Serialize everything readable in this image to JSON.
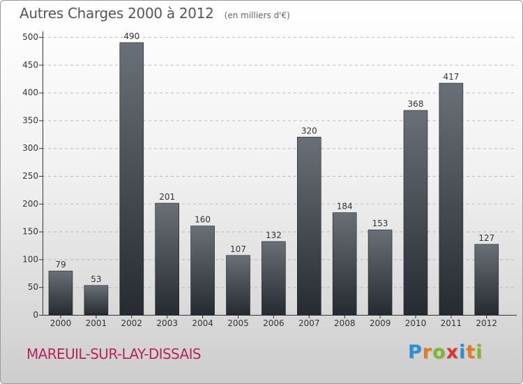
{
  "header": {
    "title": "Autres Charges 2000 à 2012",
    "unit_note": "(en milliers d'€)"
  },
  "footer": {
    "city": "MAREUIL-SUR-LAY-DISSAIS",
    "brand": "Proxiti",
    "brand_letters": [
      {
        "ch": "P",
        "color": "#2b8fd6"
      },
      {
        "ch": "r",
        "color": "#e37a1f"
      },
      {
        "ch": "o",
        "color": "#7cb82f"
      },
      {
        "ch": "x",
        "color": "#e3302f"
      },
      {
        "ch": "i",
        "color": "#2b8fd6"
      },
      {
        "ch": "t",
        "color": "#e37a1f"
      },
      {
        "ch": "i",
        "color": "#7cb82f"
      }
    ]
  },
  "chart_data": {
    "type": "bar",
    "title": "Autres Charges 2000 à 2012",
    "categories": [
      "2000",
      "2001",
      "2002",
      "2003",
      "2004",
      "2005",
      "2006",
      "2007",
      "2008",
      "2009",
      "2010",
      "2011",
      "2012"
    ],
    "values": [
      79,
      53,
      490,
      201,
      160,
      107,
      132,
      320,
      184,
      153,
      368,
      417,
      127
    ],
    "ylim": [
      0,
      500
    ],
    "yticks": [
      0,
      50,
      100,
      150,
      200,
      250,
      300,
      350,
      400,
      450,
      500
    ],
    "grid": true,
    "bar_color_top": "#6a7077",
    "bar_color_bottom": "#262b31"
  }
}
